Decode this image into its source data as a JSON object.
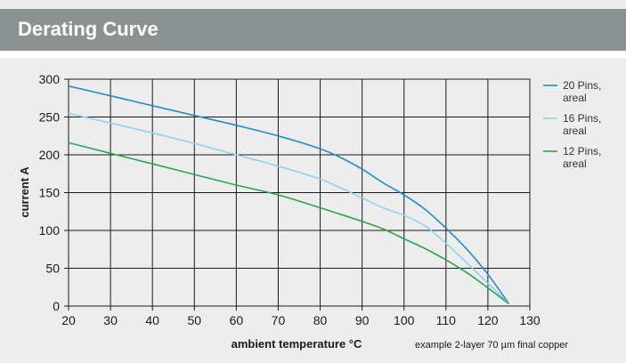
{
  "header": {
    "title": "Derating Curve"
  },
  "chart_data": {
    "type": "line",
    "title": "Derating Curve",
    "xlabel": "ambient temperature °C",
    "ylabel": "current A",
    "xlim": [
      20,
      130
    ],
    "ylim": [
      0,
      300
    ],
    "xticks": [
      20,
      30,
      40,
      50,
      60,
      70,
      80,
      90,
      100,
      110,
      120,
      130
    ],
    "yticks": [
      0,
      50,
      100,
      150,
      200,
      250,
      300
    ],
    "grid": true,
    "legend_position": "right",
    "note": "example 2-layer 70 µm final copper",
    "series": [
      {
        "name": "20 Pins, areal",
        "legend_lines": [
          "20 Pins,",
          "areal"
        ],
        "color": "#1f8dcf",
        "x": [
          20,
          30,
          40,
          50,
          60,
          70,
          80,
          85,
          90,
          95,
          100,
          105,
          110,
          115,
          120,
          125
        ],
        "y": [
          291,
          278,
          265,
          252,
          239,
          225,
          208,
          196,
          181,
          163,
          147,
          128,
          103,
          75,
          42,
          3
        ]
      },
      {
        "name": "16 Pins, areal",
        "legend_lines": [
          "16 Pins,",
          "areal"
        ],
        "color": "#8fd3f0",
        "x": [
          20,
          30,
          40,
          50,
          60,
          70,
          80,
          85,
          90,
          95,
          100,
          105,
          110,
          115,
          120,
          125
        ],
        "y": [
          255,
          242,
          229,
          215,
          200,
          185,
          168,
          156,
          143,
          130,
          120,
          106,
          83,
          57,
          30,
          3
        ]
      },
      {
        "name": "12 Pins, areal",
        "legend_lines": [
          "12 Pins,",
          "areal"
        ],
        "color": "#2aa54a",
        "x": [
          20,
          30,
          40,
          50,
          60,
          70,
          80,
          90,
          95,
          100,
          105,
          110,
          115,
          120,
          125
        ],
        "y": [
          216,
          202,
          188,
          174,
          160,
          147,
          130,
          112,
          102,
          89,
          76,
          61,
          44,
          24,
          3
        ]
      }
    ]
  }
}
